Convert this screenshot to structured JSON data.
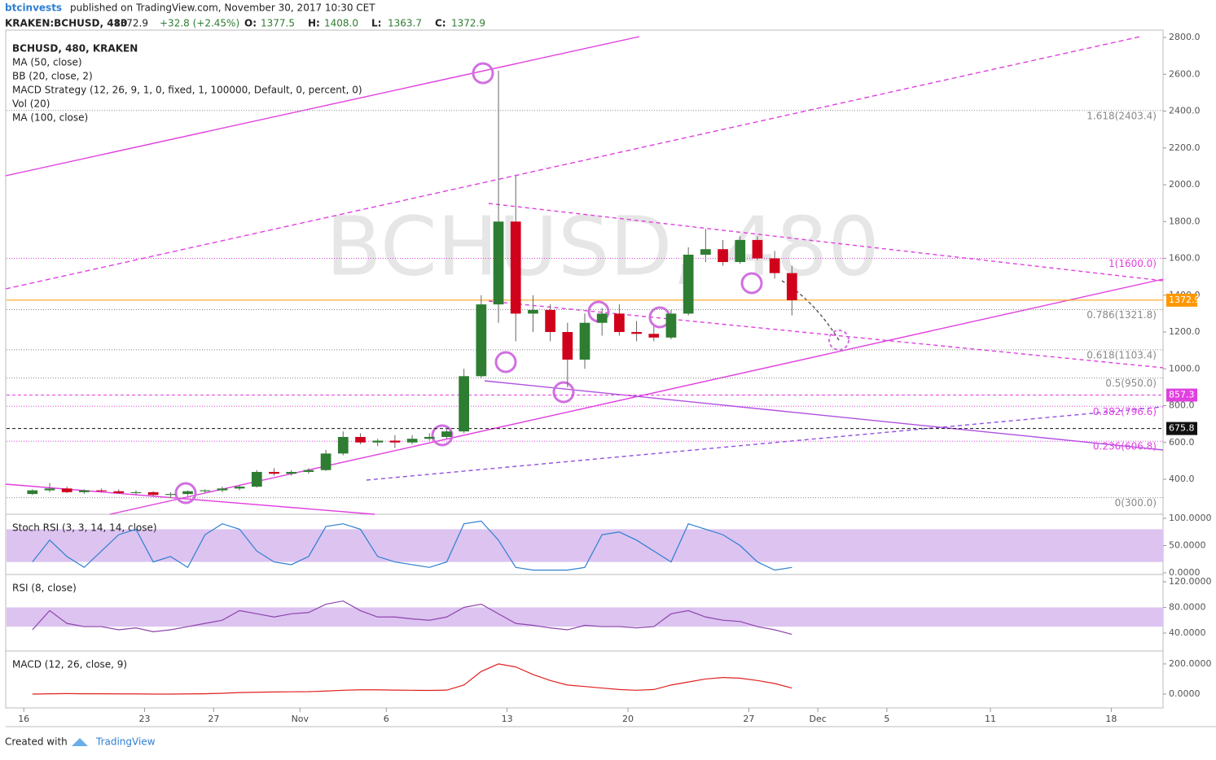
{
  "header": {
    "user": "btcinvests",
    "published": "published on TradingView.com, November 30, 2017 10:30 CET",
    "symbol": "KRAKEN:BCHUSD, 480",
    "last": "1372.9",
    "change": "+32.8 (+2.45%)",
    "ohlc": [
      {
        "key": "O:",
        "value": "1377.5"
      },
      {
        "key": "H:",
        "value": "1408.0"
      },
      {
        "key": "L:",
        "value": "1363.7"
      },
      {
        "key": "C:",
        "value": "1372.9"
      }
    ],
    "legend": [
      "BCHUSD, 480, KRAKEN",
      "MA (50, close)",
      "BB (20, close, 2)",
      "MACD Strategy (12, 26, 9, 1, 0, fixed, 1, 100000, Default, 0, percent, 0)",
      "Vol (20)",
      "MA (100, close)"
    ],
    "watermark": "BCHUSD, 480"
  },
  "footer": {
    "created": "Created with",
    "brand": "TradingView"
  },
  "chart_data": [
    {
      "type": "candlestick",
      "up_color": "#2e7d32",
      "down_color": "#d0021b",
      "x": [
        "2017-10-16",
        "2017-10-17",
        "2017-10-18",
        "2017-10-19",
        "2017-10-20",
        "2017-10-21",
        "2017-10-22",
        "2017-10-23",
        "2017-10-24",
        "2017-10-25",
        "2017-10-26",
        "2017-10-27",
        "2017-10-28",
        "2017-10-29",
        "2017-10-30",
        "2017-10-31",
        "2017-11-01",
        "2017-11-02",
        "2017-11-03",
        "2017-11-04",
        "2017-11-05",
        "2017-11-06",
        "2017-11-07",
        "2017-11-08",
        "2017-11-09",
        "2017-11-10",
        "2017-11-11",
        "2017-11-12",
        "2017-11-13",
        "2017-11-14",
        "2017-11-15",
        "2017-11-16",
        "2017-11-17",
        "2017-11-18",
        "2017-11-19",
        "2017-11-20",
        "2017-11-21",
        "2017-11-22",
        "2017-11-23",
        "2017-11-24",
        "2017-11-25",
        "2017-11-26",
        "2017-11-27",
        "2017-11-28",
        "2017-11-29"
      ],
      "open": [
        320,
        340,
        350,
        330,
        340,
        335,
        325,
        330,
        315,
        320,
        335,
        340,
        350,
        360,
        440,
        430,
        440,
        450,
        540,
        630,
        600,
        610,
        600,
        620,
        630,
        660,
        960,
        1350,
        1800,
        1300,
        1320,
        1200,
        1050,
        1250,
        1300,
        1200,
        1190,
        1170,
        1300,
        1620,
        1650,
        1580,
        1700,
        1600,
        1520
      ],
      "high": [
        345,
        380,
        360,
        345,
        350,
        345,
        340,
        335,
        330,
        340,
        345,
        360,
        370,
        450,
        460,
        450,
        460,
        560,
        660,
        650,
        620,
        640,
        640,
        650,
        680,
        1000,
        1400,
        2620,
        2050,
        1400,
        1350,
        1250,
        1300,
        1330,
        1350,
        1260,
        1230,
        1320,
        1660,
        1760,
        1700,
        1720,
        1720,
        1640,
        1560
      ],
      "low": [
        315,
        330,
        325,
        320,
        330,
        320,
        315,
        305,
        300,
        310,
        325,
        330,
        340,
        355,
        420,
        420,
        430,
        445,
        530,
        590,
        580,
        570,
        590,
        610,
        620,
        650,
        950,
        1250,
        1150,
        1200,
        1150,
        900,
        1000,
        1180,
        1180,
        1150,
        1150,
        1160,
        1290,
        1580,
        1560,
        1570,
        1590,
        1490,
        1290
      ],
      "close": [
        340,
        350,
        330,
        340,
        335,
        325,
        330,
        315,
        320,
        335,
        340,
        350,
        360,
        440,
        430,
        440,
        450,
        540,
        630,
        600,
        610,
        600,
        620,
        630,
        660,
        960,
        1350,
        1800,
        1300,
        1320,
        1200,
        1050,
        1250,
        1300,
        1200,
        1190,
        1170,
        1300,
        1620,
        1650,
        1580,
        1700,
        1600,
        1520,
        1372.9
      ],
      "xlim": [
        "2017-10-15",
        "2017-12-21"
      ],
      "xticks": [
        {
          "value": "2017-10-16",
          "label": "16"
        },
        {
          "value": "2017-10-23",
          "label": "23"
        },
        {
          "value": "2017-10-27",
          "label": "27"
        },
        {
          "value": "2017-11-01",
          "label": "Nov"
        },
        {
          "value": "2017-11-06",
          "label": "6"
        },
        {
          "value": "2017-11-13",
          "label": "13"
        },
        {
          "value": "2017-11-20",
          "label": "20"
        },
        {
          "value": "2017-11-27",
          "label": "27"
        },
        {
          "value": "2017-12-01",
          "label": "Dec"
        },
        {
          "value": "2017-12-05",
          "label": "5"
        },
        {
          "value": "2017-12-11",
          "label": "11"
        },
        {
          "value": "2017-12-18",
          "label": "18"
        }
      ],
      "ylim": [
        210,
        2840
      ],
      "yticks": [
        {
          "value": 400,
          "label": "400.0"
        },
        {
          "value": 600,
          "label": "600.0"
        },
        {
          "value": 800,
          "label": "800.0"
        },
        {
          "value": 1000,
          "label": "1000.0"
        },
        {
          "value": 1200,
          "label": "1200.0"
        },
        {
          "value": 1400,
          "label": "1400.0"
        },
        {
          "value": 1600,
          "label": "1600.0"
        },
        {
          "value": 1800,
          "label": "1800.0"
        },
        {
          "value": 2000,
          "label": "2000.0"
        },
        {
          "value": 2200,
          "label": "2200.0"
        },
        {
          "value": 2400,
          "label": "2400.0"
        },
        {
          "value": 2600,
          "label": "2600.0"
        },
        {
          "value": 2800,
          "label": "2800.0"
        }
      ],
      "fib_levels": [
        {
          "value": 2403.4,
          "label": "1.618(2403.4)",
          "color": "#888888"
        },
        {
          "value": 1600,
          "label": "1(1600.0)",
          "color": "#e040e0"
        },
        {
          "value": 1321.8,
          "label": "0.786(1321.8)",
          "color": "#888888"
        },
        {
          "value": 1103.4,
          "label": "0.618(1103.4)",
          "color": "#888888"
        },
        {
          "value": 950,
          "label": "0.5(950.0)",
          "color": "#888888"
        },
        {
          "value": 796.6,
          "label": "0.382(796.6)",
          "color": "#e040e0"
        },
        {
          "value": 606.8,
          "label": "0.236(606.8)",
          "color": "#e040e0"
        },
        {
          "value": 300,
          "label": "0(300.0)",
          "color": "#888888"
        }
      ],
      "price_tags": [
        {
          "price": 1372.9,
          "color": "#ff9800"
        },
        {
          "price": 857.3,
          "color": "#e040e0"
        },
        {
          "price": 675.8,
          "color": "#111111"
        }
      ]
    },
    {
      "type": "line",
      "title": "Stoch RSI (3, 3, 14, 14, close)",
      "color": "#2f7fd0",
      "band": [
        20,
        80
      ],
      "ylim": [
        -3,
        107.5
      ],
      "yticks": [
        {
          "value": 100,
          "label": "100.0000"
        },
        {
          "value": 50,
          "label": "50.0000"
        },
        {
          "value": 0,
          "label": "0.0000"
        }
      ],
      "values": [
        20,
        60,
        30,
        10,
        40,
        70,
        80,
        20,
        30,
        10,
        70,
        90,
        80,
        40,
        20,
        15,
        30,
        85,
        90,
        80,
        30,
        20,
        15,
        10,
        20,
        90,
        95,
        60,
        10,
        5,
        5,
        5,
        10,
        70,
        75,
        60,
        40,
        20,
        90,
        80,
        70,
        50,
        20,
        5,
        10
      ]
    },
    {
      "type": "line",
      "title": "RSI (8, close)",
      "color": "#8e44ad",
      "band": [
        50,
        80
      ],
      "ylim": [
        12,
        131.4
      ],
      "yticks": [
        {
          "value": 120,
          "label": "120.0000"
        },
        {
          "value": 80,
          "label": "80.0000"
        },
        {
          "value": 40,
          "label": "40.0000"
        }
      ],
      "values": [
        45,
        75,
        55,
        50,
        50,
        45,
        48,
        42,
        45,
        50,
        55,
        60,
        75,
        70,
        65,
        70,
        72,
        85,
        90,
        75,
        65,
        65,
        62,
        60,
        65,
        80,
        85,
        70,
        55,
        52,
        48,
        45,
        52,
        50,
        50,
        48,
        50,
        70,
        75,
        65,
        60,
        58,
        50,
        45,
        38
      ]
    },
    {
      "type": "line",
      "title": "MACD (12, 26, close, 9)",
      "color": "#e02020",
      "ylim": [
        -92,
        286
      ],
      "yticks": [
        {
          "value": 200,
          "label": "200.0000"
        },
        {
          "value": 0,
          "label": "0.0000"
        }
      ],
      "values": [
        0,
        2,
        3,
        2,
        2,
        1,
        1,
        0,
        0,
        1,
        2,
        5,
        10,
        12,
        14,
        15,
        16,
        20,
        25,
        28,
        28,
        26,
        25,
        24,
        26,
        60,
        150,
        200,
        180,
        130,
        90,
        60,
        50,
        40,
        30,
        25,
        30,
        60,
        80,
        100,
        110,
        105,
        90,
        70,
        40
      ]
    }
  ]
}
